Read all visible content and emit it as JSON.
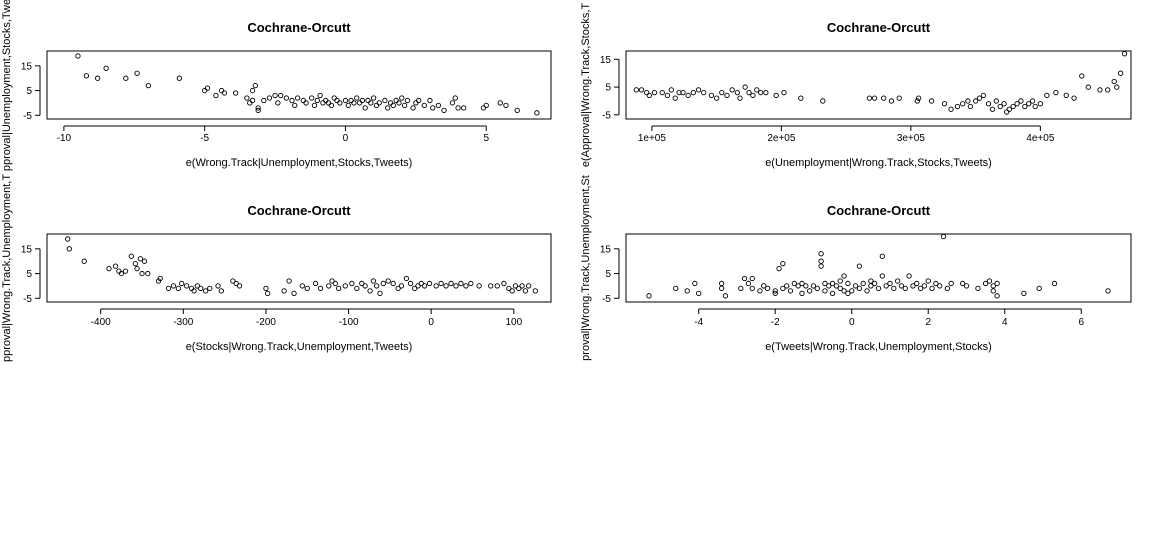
{
  "chart_data": [
    {
      "type": "scatter",
      "title": "Cochrane-Orcutt",
      "xlabel": "e(Wrong.Track|Unemployment,Stocks,Tweets)",
      "ylabel": "e(Approval|Unemployment,Stocks,Tweets)",
      "ylabel_shown": "pproval|Unemployment,Stocks,Twe",
      "xlim": [
        -10.6,
        7.3
      ],
      "ylim": [
        -6.5,
        21
      ],
      "xticks": [
        -10,
        -5,
        0,
        5
      ],
      "xtick_labels": [
        "-10",
        "-5",
        "0",
        "5"
      ],
      "yticks": [
        -5,
        5,
        15
      ],
      "ytick_labels": [
        "-5",
        "5",
        "15"
      ],
      "grid": false,
      "points": [
        [
          -9.5,
          19
        ],
        [
          -9.2,
          11
        ],
        [
          -8.8,
          10
        ],
        [
          -8.5,
          14
        ],
        [
          -7.8,
          10
        ],
        [
          -7.4,
          12
        ],
        [
          -7,
          7
        ],
        [
          -5.9,
          10
        ],
        [
          -5,
          5
        ],
        [
          -4.9,
          6
        ],
        [
          -4.6,
          3
        ],
        [
          -4.4,
          5
        ],
        [
          -4.3,
          4
        ],
        [
          -3.9,
          4
        ],
        [
          -3.5,
          2
        ],
        [
          -3.4,
          0
        ],
        [
          -3.3,
          1
        ],
        [
          -3.3,
          5
        ],
        [
          -3.2,
          7
        ],
        [
          -3.1,
          -2
        ],
        [
          -3.1,
          -3
        ],
        [
          -2.9,
          1
        ],
        [
          -2.7,
          2
        ],
        [
          -2.5,
          3
        ],
        [
          -2.4,
          0
        ],
        [
          -2.3,
          3
        ],
        [
          -2.1,
          2
        ],
        [
          -1.9,
          1
        ],
        [
          -1.8,
          -1
        ],
        [
          -1.7,
          2
        ],
        [
          -1.5,
          1
        ],
        [
          -1.4,
          0
        ],
        [
          -1.2,
          2
        ],
        [
          -1.1,
          -1
        ],
        [
          -1,
          1
        ],
        [
          -0.9,
          3
        ],
        [
          -0.8,
          0
        ],
        [
          -0.7,
          1
        ],
        [
          -0.6,
          0
        ],
        [
          -0.5,
          -1
        ],
        [
          -0.4,
          2
        ],
        [
          -0.3,
          1
        ],
        [
          -0.2,
          0
        ],
        [
          0,
          1
        ],
        [
          0.1,
          -1
        ],
        [
          0.2,
          1
        ],
        [
          0.3,
          0
        ],
        [
          0.4,
          2
        ],
        [
          0.5,
          0
        ],
        [
          0.6,
          1
        ],
        [
          0.7,
          -2
        ],
        [
          0.8,
          1
        ],
        [
          0.9,
          0
        ],
        [
          1,
          2
        ],
        [
          1.1,
          -1
        ],
        [
          1.2,
          0
        ],
        [
          1.4,
          1
        ],
        [
          1.5,
          -2
        ],
        [
          1.6,
          0
        ],
        [
          1.7,
          -1
        ],
        [
          1.8,
          1
        ],
        [
          1.9,
          0
        ],
        [
          2,
          2
        ],
        [
          2.1,
          -1
        ],
        [
          2.2,
          1
        ],
        [
          2.4,
          -2
        ],
        [
          2.5,
          0
        ],
        [
          2.6,
          1
        ],
        [
          2.8,
          -1
        ],
        [
          3,
          1
        ],
        [
          3.1,
          -2
        ],
        [
          3.3,
          -1
        ],
        [
          3.5,
          -3
        ],
        [
          3.8,
          0
        ],
        [
          3.9,
          2
        ],
        [
          4,
          -2
        ],
        [
          4.2,
          -2
        ],
        [
          4.9,
          -2
        ],
        [
          5,
          -1
        ],
        [
          5.5,
          0
        ],
        [
          5.7,
          -1
        ],
        [
          6.1,
          -3
        ],
        [
          6.8,
          -4
        ]
      ]
    },
    {
      "type": "scatter",
      "title": "Cochrane-Orcutt",
      "xlabel": "e(Unemployment|Wrong.Track,Stocks,Tweets)",
      "ylabel": "e(Approval|Wrong.Track,Stocks,Tweets)",
      "ylabel_shown": "e(Approval|Wrong.Track,Stocks,T",
      "xlim": [
        80000,
        470000
      ],
      "ylim": [
        -6.5,
        18
      ],
      "xticks": [
        100000,
        200000,
        300000,
        400000
      ],
      "xtick_labels": [
        "1e+05",
        "2e+05",
        "3e+05",
        "4e+05"
      ],
      "yticks": [
        -5,
        5,
        15
      ],
      "ytick_labels": [
        "-5",
        "5",
        "15"
      ],
      "grid": false,
      "points": [
        [
          88000,
          4
        ],
        [
          92000,
          4
        ],
        [
          96000,
          3
        ],
        [
          98000,
          2
        ],
        [
          102000,
          3
        ],
        [
          108000,
          3
        ],
        [
          112000,
          2
        ],
        [
          115000,
          4
        ],
        [
          118000,
          1
        ],
        [
          121000,
          3
        ],
        [
          124000,
          3
        ],
        [
          128000,
          2
        ],
        [
          132000,
          3
        ],
        [
          136000,
          4
        ],
        [
          140000,
          3
        ],
        [
          146000,
          2
        ],
        [
          150000,
          1
        ],
        [
          154000,
          3
        ],
        [
          158000,
          2
        ],
        [
          162000,
          4
        ],
        [
          166000,
          3
        ],
        [
          168000,
          1
        ],
        [
          172000,
          5
        ],
        [
          175000,
          3
        ],
        [
          178000,
          2
        ],
        [
          181000,
          4
        ],
        [
          184000,
          3
        ],
        [
          188000,
          3
        ],
        [
          196000,
          2
        ],
        [
          202000,
          3
        ],
        [
          215000,
          1
        ],
        [
          232000,
          0
        ],
        [
          268000,
          1
        ],
        [
          272000,
          1
        ],
        [
          279000,
          1
        ],
        [
          285000,
          0
        ],
        [
          291000,
          1
        ],
        [
          305000,
          0
        ],
        [
          306000,
          1
        ],
        [
          316000,
          0
        ],
        [
          326000,
          -1
        ],
        [
          331000,
          -3
        ],
        [
          336000,
          -2
        ],
        [
          340000,
          -1
        ],
        [
          344000,
          0
        ],
        [
          346000,
          -2
        ],
        [
          350000,
          0
        ],
        [
          353000,
          1
        ],
        [
          356000,
          2
        ],
        [
          360000,
          -1
        ],
        [
          363000,
          -3
        ],
        [
          366000,
          0
        ],
        [
          369000,
          -2
        ],
        [
          372000,
          -1
        ],
        [
          374000,
          -4
        ],
        [
          376000,
          -3
        ],
        [
          379000,
          -2
        ],
        [
          382000,
          -1
        ],
        [
          385000,
          0
        ],
        [
          388000,
          -2
        ],
        [
          391000,
          -1
        ],
        [
          394000,
          0
        ],
        [
          396000,
          -2
        ],
        [
          400000,
          -1
        ],
        [
          405000,
          2
        ],
        [
          412000,
          3
        ],
        [
          420000,
          2
        ],
        [
          426000,
          1
        ],
        [
          432000,
          9
        ],
        [
          437000,
          5
        ],
        [
          446000,
          4
        ],
        [
          452000,
          4
        ],
        [
          457000,
          7
        ],
        [
          459000,
          5
        ],
        [
          462000,
          10
        ],
        [
          465000,
          17
        ]
      ]
    },
    {
      "type": "scatter",
      "title": "Cochrane-Orcutt",
      "xlabel": "e(Stocks|Wrong.Track,Unemployment,Tweets)",
      "ylabel": "e(Approval|Wrong.Track,Unemployment,Tweets)",
      "ylabel_shown": "pproval|Wrong.Track,Unemployment,T",
      "xlim": [
        -465,
        145
      ],
      "ylim": [
        -6.5,
        21
      ],
      "xticks": [
        -400,
        -300,
        -200,
        -100,
        0,
        100
      ],
      "xtick_labels": [
        "-400",
        "-300",
        "-200",
        "-100",
        "0",
        "100"
      ],
      "yticks": [
        -5,
        5,
        15
      ],
      "ytick_labels": [
        "-5",
        "5",
        "15"
      ],
      "grid": false,
      "points": [
        [
          -440,
          19
        ],
        [
          -438,
          15
        ],
        [
          -420,
          10
        ],
        [
          -390,
          7
        ],
        [
          -382,
          8
        ],
        [
          -378,
          6
        ],
        [
          -375,
          5
        ],
        [
          -370,
          6
        ],
        [
          -363,
          12
        ],
        [
          -358,
          9
        ],
        [
          -356,
          7
        ],
        [
          -352,
          11
        ],
        [
          -350,
          5
        ],
        [
          -347,
          10
        ],
        [
          -343,
          5
        ],
        [
          -330,
          2
        ],
        [
          -328,
          3
        ],
        [
          -318,
          -1
        ],
        [
          -312,
          0
        ],
        [
          -306,
          -1
        ],
        [
          -302,
          1
        ],
        [
          -296,
          0
        ],
        [
          -290,
          -1
        ],
        [
          -287,
          -2
        ],
        [
          -283,
          0
        ],
        [
          -279,
          -1
        ],
        [
          -273,
          -2
        ],
        [
          -268,
          -1
        ],
        [
          -258,
          0
        ],
        [
          -254,
          -2
        ],
        [
          -240,
          2
        ],
        [
          -236,
          1
        ],
        [
          -232,
          0
        ],
        [
          -200,
          -1
        ],
        [
          -198,
          -3
        ],
        [
          -178,
          -2
        ],
        [
          -172,
          2
        ],
        [
          -166,
          -3
        ],
        [
          -156,
          0
        ],
        [
          -150,
          -1
        ],
        [
          -140,
          1
        ],
        [
          -134,
          -1
        ],
        [
          -124,
          0
        ],
        [
          -120,
          2
        ],
        [
          -116,
          1
        ],
        [
          -112,
          -1
        ],
        [
          -104,
          0
        ],
        [
          -96,
          1
        ],
        [
          -90,
          -1
        ],
        [
          -84,
          1
        ],
        [
          -80,
          0
        ],
        [
          -74,
          -2
        ],
        [
          -70,
          2
        ],
        [
          -66,
          0
        ],
        [
          -62,
          -3
        ],
        [
          -58,
          1
        ],
        [
          -52,
          2
        ],
        [
          -46,
          1
        ],
        [
          -40,
          -1
        ],
        [
          -36,
          0
        ],
        [
          -30,
          3
        ],
        [
          -25,
          1
        ],
        [
          -20,
          -1
        ],
        [
          -16,
          0
        ],
        [
          -12,
          1
        ],
        [
          -8,
          0
        ],
        [
          -2,
          1
        ],
        [
          6,
          0
        ],
        [
          12,
          1
        ],
        [
          18,
          0
        ],
        [
          24,
          1
        ],
        [
          30,
          0
        ],
        [
          36,
          1
        ],
        [
          42,
          0
        ],
        [
          48,
          1
        ],
        [
          58,
          0
        ],
        [
          72,
          0
        ],
        [
          80,
          0
        ],
        [
          88,
          1
        ],
        [
          94,
          -1
        ],
        [
          98,
          -2
        ],
        [
          102,
          0
        ],
        [
          106,
          -1
        ],
        [
          110,
          0
        ],
        [
          114,
          -2
        ],
        [
          118,
          0
        ],
        [
          126,
          -2
        ]
      ]
    },
    {
      "type": "scatter",
      "title": "Cochrane-Orcutt",
      "xlabel": "e(Tweets|Wrong.Track,Unemployment,Stocks)",
      "ylabel": "e(Approval|Wrong.Track,Unemployment,Stocks)",
      "ylabel_shown": "proval|Wrong.Track,Unemployment,St",
      "xlim": [
        -5.9,
        7.3
      ],
      "ylim": [
        -6.5,
        21
      ],
      "xticks": [
        -4,
        -2,
        0,
        2,
        4,
        6
      ],
      "xtick_labels": [
        "-4",
        "-2",
        "0",
        "2",
        "4",
        "6"
      ],
      "yticks": [
        -5,
        5,
        15
      ],
      "ytick_labels": [
        "-5",
        "5",
        "15"
      ],
      "grid": false,
      "points": [
        [
          -5.3,
          -4
        ],
        [
          -4.6,
          -1
        ],
        [
          -4.3,
          -2
        ],
        [
          -4.1,
          1
        ],
        [
          -4,
          -3
        ],
        [
          -3.4,
          1
        ],
        [
          -3.4,
          -1
        ],
        [
          -3.3,
          -4
        ],
        [
          -2.9,
          -1
        ],
        [
          -2.8,
          3
        ],
        [
          -2.7,
          1
        ],
        [
          -2.6,
          3
        ],
        [
          -2.6,
          -1
        ],
        [
          -2.4,
          -2
        ],
        [
          -2.3,
          0
        ],
        [
          -2.2,
          -1
        ],
        [
          -2,
          -2
        ],
        [
          -2,
          -3
        ],
        [
          -1.9,
          7
        ],
        [
          -1.8,
          9
        ],
        [
          -1.8,
          -1
        ],
        [
          -1.7,
          0
        ],
        [
          -1.6,
          -2
        ],
        [
          -1.5,
          1
        ],
        [
          -1.4,
          0
        ],
        [
          -1.3,
          -3
        ],
        [
          -1.3,
          1
        ],
        [
          -1.2,
          0
        ],
        [
          -1.1,
          -2
        ],
        [
          -1,
          0
        ],
        [
          -0.9,
          -1
        ],
        [
          -0.8,
          13
        ],
        [
          -0.8,
          10
        ],
        [
          -0.8,
          8
        ],
        [
          -0.7,
          -2
        ],
        [
          -0.7,
          1
        ],
        [
          -0.6,
          0
        ],
        [
          -0.5,
          -3
        ],
        [
          -0.5,
          1
        ],
        [
          -0.4,
          0
        ],
        [
          -0.3,
          2
        ],
        [
          -0.3,
          -1
        ],
        [
          -0.2,
          4
        ],
        [
          -0.2,
          -2
        ],
        [
          -0.1,
          1
        ],
        [
          -0.1,
          -3
        ],
        [
          0,
          -2
        ],
        [
          0.1,
          0
        ],
        [
          0.2,
          -1
        ],
        [
          0.2,
          8
        ],
        [
          0.3,
          1
        ],
        [
          0.4,
          -2
        ],
        [
          0.5,
          0
        ],
        [
          0.5,
          2
        ],
        [
          0.6,
          1
        ],
        [
          0.7,
          -1
        ],
        [
          0.8,
          4
        ],
        [
          0.8,
          12
        ],
        [
          0.9,
          0
        ],
        [
          1,
          1
        ],
        [
          1.1,
          -1
        ],
        [
          1.2,
          2
        ],
        [
          1.3,
          0
        ],
        [
          1.4,
          -1
        ],
        [
          1.5,
          4
        ],
        [
          1.6,
          0
        ],
        [
          1.7,
          1
        ],
        [
          1.8,
          -1
        ],
        [
          1.9,
          0
        ],
        [
          2,
          2
        ],
        [
          2.1,
          -1
        ],
        [
          2.2,
          1
        ],
        [
          2.3,
          0
        ],
        [
          2.4,
          20
        ],
        [
          2.5,
          -1
        ],
        [
          2.6,
          1
        ],
        [
          2.9,
          1
        ],
        [
          3,
          0
        ],
        [
          3.3,
          -1
        ],
        [
          3.5,
          1
        ],
        [
          3.6,
          2
        ],
        [
          3.7,
          0
        ],
        [
          3.7,
          -2
        ],
        [
          3.8,
          1
        ],
        [
          3.8,
          -4
        ],
        [
          4.5,
          -3
        ],
        [
          4.9,
          -1
        ],
        [
          5.3,
          1
        ],
        [
          6.7,
          -2
        ]
      ]
    }
  ]
}
